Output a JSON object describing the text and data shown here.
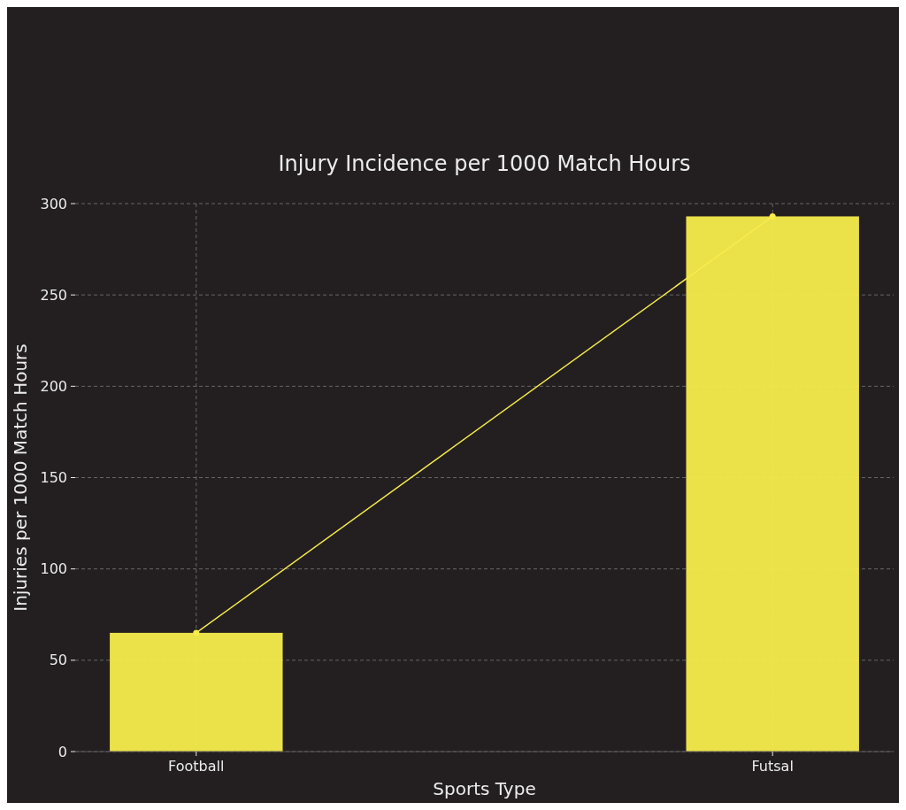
{
  "chart_data": {
    "type": "bar",
    "title": "Injury Incidence per 1000 Match Hours",
    "xlabel": "Sports Type",
    "ylabel": "Injuries per 1000 Match Hours",
    "categories": [
      "Football",
      "Futsal"
    ],
    "series": [
      {
        "color": "#f7ec4c",
        "values": [
          65,
          293
        ]
      },
      {
        "type": "line",
        "color": "#f7ec4c",
        "values": [
          65,
          293
        ]
      }
    ],
    "ylim": [
      0,
      300
    ],
    "yticks": [
      0,
      50,
      100,
      150,
      200,
      250,
      300
    ],
    "grid": true,
    "marker": "circle",
    "line_style": "solid"
  }
}
